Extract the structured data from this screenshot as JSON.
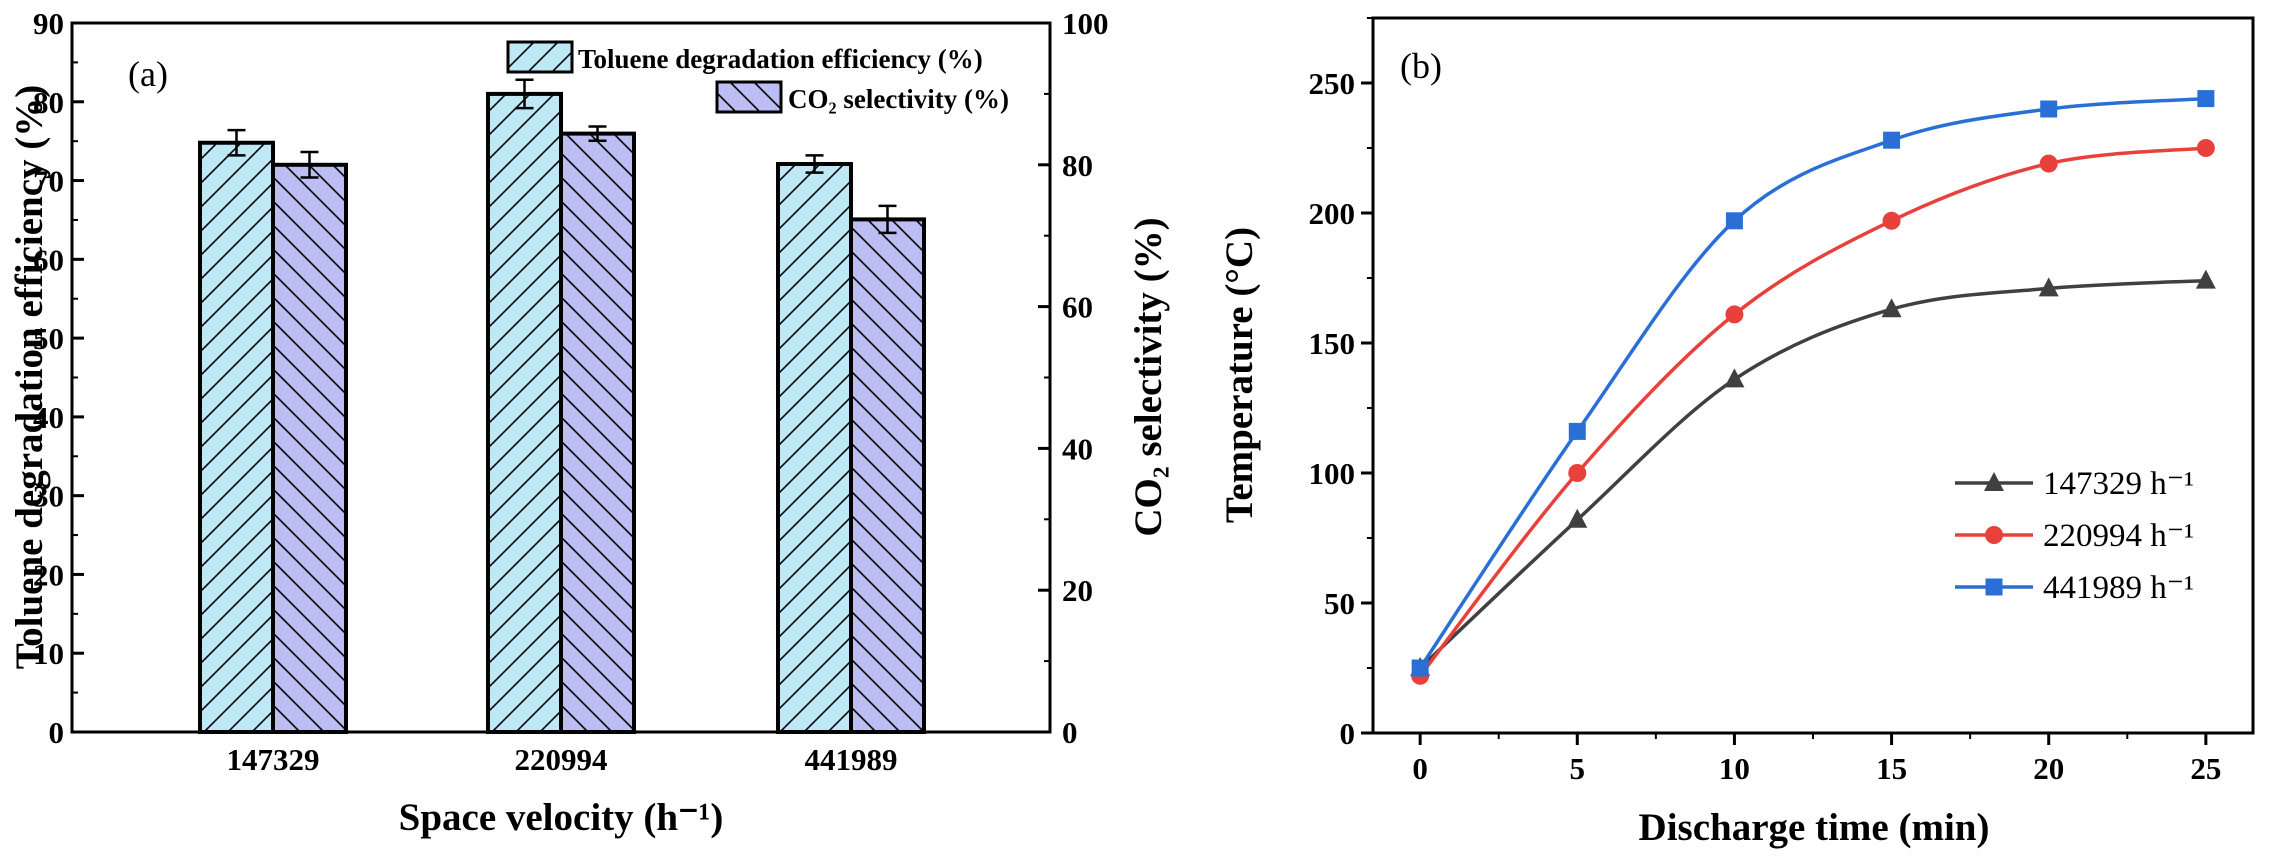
{
  "chart_data": [
    {
      "panel_label": "(a)",
      "type": "bar",
      "categories": [
        "147329",
        "220994",
        "441989"
      ],
      "xlabel": "Space velocity (h⁻¹)",
      "ylabel": "Toluene degradation efficiency (%)",
      "ylabel_right": "CO₂ selectivity (%)",
      "ylim": [
        0,
        90
      ],
      "ylim_right": [
        0,
        100
      ],
      "yticks": [
        "0",
        "10",
        "20",
        "30",
        "40",
        "50",
        "60",
        "70",
        "80",
        "90"
      ],
      "yticks_right": [
        "0",
        "20",
        "40",
        "60",
        "80",
        "100"
      ],
      "legend_position": "top-right",
      "series": [
        {
          "name": "Toluene degradation efficiency (%)",
          "axis": "left",
          "color": "#bfe8f7",
          "hatch": "forward",
          "values": [
            74.8,
            81.0,
            72.1
          ],
          "errors": [
            1.6,
            1.8,
            1.1
          ]
        },
        {
          "name": "CO₂ selectivity (%)",
          "axis": "right",
          "color": "#bcbdf2",
          "hatch": "backward",
          "values": [
            80.0,
            84.4,
            72.3
          ],
          "errors": [
            1.8,
            1.0,
            1.9
          ]
        }
      ]
    },
    {
      "panel_label": "(b)",
      "type": "line",
      "xlabel": "Discharge time (min)",
      "ylabel": "Temperature (°C)",
      "xlim": [
        -1.5,
        26.5
      ],
      "ylim": [
        0,
        275
      ],
      "xticks": [
        "0",
        "5",
        "10",
        "15",
        "20",
        "25"
      ],
      "yticks": [
        "0",
        "50",
        "100",
        "150",
        "200",
        "250"
      ],
      "legend_position": "lower-right",
      "x": [
        0,
        5,
        10,
        15,
        20,
        25
      ],
      "series": [
        {
          "name": "147329 h⁻¹",
          "color": "#404040",
          "marker": "triangle",
          "values": [
            25,
            82,
            136,
            163,
            171,
            174
          ]
        },
        {
          "name": "220994 h⁻¹",
          "color": "#e8413c",
          "marker": "circle",
          "values": [
            22,
            100,
            161,
            197,
            219,
            225
          ]
        },
        {
          "name": "441989 h⁻¹",
          "color": "#2a6fd6",
          "marker": "square",
          "values": [
            25,
            116,
            197,
            228,
            240,
            244
          ]
        }
      ]
    }
  ]
}
